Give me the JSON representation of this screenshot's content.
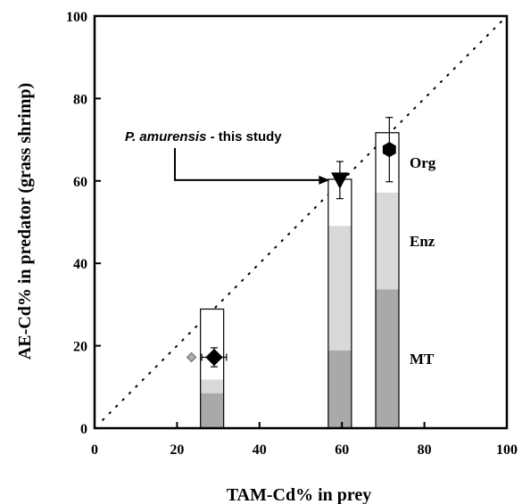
{
  "chart_data": {
    "type": "bar",
    "xlabel": "TAM-Cd% in prey",
    "ylabel": "AE-Cd% in predator (grass shrimp)",
    "xlim": [
      0,
      100
    ],
    "ylim": [
      0,
      100
    ],
    "xticks": [
      0,
      20,
      40,
      60,
      80,
      100
    ],
    "yticks": [
      0,
      20,
      40,
      60,
      80,
      100
    ],
    "grid": false,
    "one_to_one_line": {
      "style": "dotted",
      "from": [
        2,
        2
      ],
      "to": [
        100,
        100
      ]
    },
    "stacked_bars": [
      {
        "x_center": 28.5,
        "segments": {
          "MT": 8.5,
          "Enz": 3.3,
          "Org": 17.1
        },
        "total": 28.9
      },
      {
        "x_center": 59.5,
        "segments": {
          "MT": 18.9,
          "Enz": 30.2,
          "Org": 11.3
        },
        "total": 60.4
      },
      {
        "x_center": 71.0,
        "segments": {
          "MT": 33.7,
          "Enz": 23.5,
          "Org": 14.5
        },
        "total": 71.7
      }
    ],
    "segment_colors": {
      "MT": "#a9a9a9",
      "Enz": "#d9d9d9",
      "Org": "#ffffff"
    },
    "segment_labels": [
      {
        "text": "Org",
        "segment": "Org"
      },
      {
        "text": "Enz",
        "segment": "Enz"
      },
      {
        "text": "MT",
        "segment": "MT"
      }
    ],
    "points": [
      {
        "shape": "diamond",
        "x": 29.0,
        "y": 17.2,
        "xerr": 3.0,
        "yerr": 2.3,
        "color": "#000000"
      },
      {
        "shape": "diamond-small",
        "x": 23.5,
        "y": 17.2,
        "color": "#b0b0b0"
      },
      {
        "shape": "triangle-down",
        "x": 59.5,
        "y": 60.2,
        "yerr": 4.5,
        "color": "#000000"
      },
      {
        "shape": "hexagon",
        "x": 71.5,
        "y": 67.6,
        "yerr": 7.8,
        "color": "#000000"
      }
    ],
    "annotation": {
      "italic": "P. amurensis",
      "rest": " - this study",
      "arrow_target": [
        57.0,
        60.2
      ]
    }
  }
}
